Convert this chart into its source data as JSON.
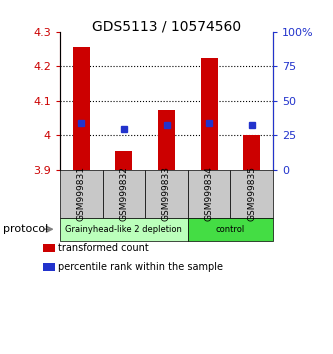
{
  "title": "GDS5113 / 10574560",
  "samples": [
    "GSM999831",
    "GSM999832",
    "GSM999833",
    "GSM999834",
    "GSM999835"
  ],
  "bar_bottoms": [
    3.9,
    3.9,
    3.9,
    3.9,
    3.9
  ],
  "bar_tops": [
    4.255,
    3.955,
    4.075,
    4.225,
    4.0
  ],
  "blue_y": [
    4.035,
    4.02,
    4.03,
    4.035,
    4.03
  ],
  "ylim": [
    3.9,
    4.3
  ],
  "right_ylim": [
    0,
    100
  ],
  "right_yticks": [
    0,
    25,
    50,
    75,
    100
  ],
  "right_yticklabels": [
    "0",
    "25",
    "50",
    "75",
    "100%"
  ],
  "left_yticks": [
    3.9,
    4.0,
    4.1,
    4.2,
    4.3
  ],
  "left_yticklabels": [
    "3.9",
    "4",
    "4.1",
    "4.2",
    "4.3"
  ],
  "bar_color": "#cc0000",
  "blue_color": "#2233cc",
  "protocol_groups": [
    {
      "label": "Grainyhead-like 2 depletion",
      "start": 0,
      "end": 3,
      "color": "#bbffbb"
    },
    {
      "label": "control",
      "start": 3,
      "end": 5,
      "color": "#44dd44"
    }
  ],
  "protocol_label": "protocol",
  "legend_items": [
    {
      "color": "#cc0000",
      "label": "transformed count"
    },
    {
      "color": "#2233cc",
      "label": "percentile rank within the sample"
    }
  ],
  "sample_box_color": "#c8c8c8",
  "bar_width": 0.4
}
